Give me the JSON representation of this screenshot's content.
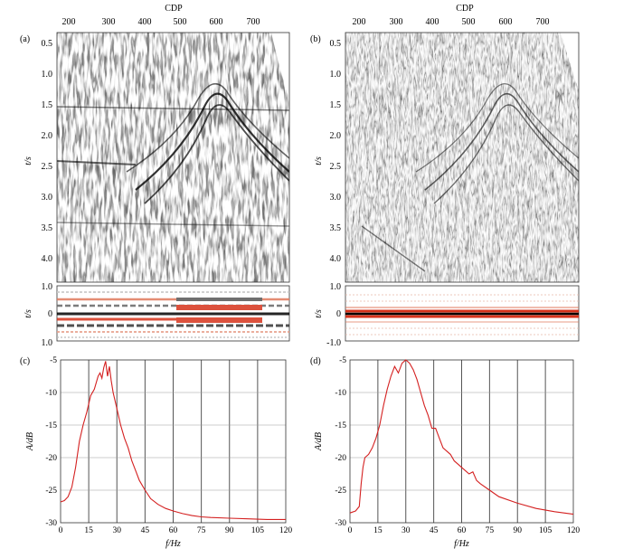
{
  "seismic_panels": [
    {
      "label": "(a)",
      "top_axis_label": "CDP",
      "cdp_ticks": [
        "200",
        "300",
        "400",
        "500",
        "600",
        "700"
      ],
      "time_ticks": [
        "0.5",
        "1.0",
        "1.5",
        "2.0",
        "2.5",
        "3.0",
        "3.5",
        "4.0"
      ],
      "y_label": "t/s",
      "wavelet_ticks": [
        "1.0",
        "0",
        "1.0"
      ],
      "wavelet_y_label": "t/s",
      "wavelet_style": "variable"
    },
    {
      "label": "(b)",
      "top_axis_label": "CDP",
      "cdp_ticks": [
        "200",
        "300",
        "400",
        "500",
        "600",
        "700"
      ],
      "time_ticks": [
        "0.5",
        "1.0",
        "1.5",
        "2.0",
        "2.5",
        "3.0",
        "3.5",
        "4.0"
      ],
      "y_label": "t/s",
      "wavelet_ticks": [
        "1.0",
        "0",
        "-1.0"
      ],
      "wavelet_y_label": "t/s",
      "wavelet_style": "uniform"
    }
  ],
  "chart_data": [
    {
      "type": "line",
      "label": "(c)",
      "xlabel": "f/Hz",
      "ylabel": "A/dB",
      "xlim": [
        0,
        120
      ],
      "ylim": [
        -30,
        -5
      ],
      "xticks": [
        "0",
        "15",
        "30",
        "45",
        "60",
        "75",
        "90",
        "105",
        "120"
      ],
      "yticks": [
        "-5",
        "-10",
        "-15",
        "-20",
        "-25",
        "-30"
      ],
      "grid": true,
      "line_color": "#d42020",
      "x": [
        0,
        2,
        4,
        6,
        8,
        10,
        12,
        14,
        16,
        18,
        20,
        21,
        22,
        23,
        24,
        25,
        26,
        27,
        28,
        30,
        32,
        34,
        36,
        38,
        40,
        42,
        45,
        48,
        52,
        56,
        60,
        65,
        70,
        75,
        80,
        90,
        100,
        110,
        120
      ],
      "y": [
        -26.8,
        -26.6,
        -26,
        -24.5,
        -21.5,
        -17.5,
        -15,
        -13,
        -10.5,
        -9.5,
        -7.5,
        -7,
        -7.8,
        -6.2,
        -5.2,
        -7.5,
        -6,
        -8.2,
        -10,
        -12.5,
        -15,
        -17,
        -18.5,
        -20.5,
        -22,
        -23.5,
        -25,
        -26.3,
        -27.2,
        -27.8,
        -28.2,
        -28.6,
        -28.9,
        -29.1,
        -29.2,
        -29.3,
        -29.4,
        -29.5,
        -29.5
      ]
    },
    {
      "type": "line",
      "label": "(d)",
      "xlabel": "f/Hz",
      "ylabel": "A/dB",
      "xlim": [
        0,
        120
      ],
      "ylim": [
        -30,
        -5
      ],
      "xticks": [
        "0",
        "15",
        "30",
        "45",
        "60",
        "75",
        "90",
        "105",
        "120"
      ],
      "yticks": [
        "-5",
        "-10",
        "-15",
        "-20",
        "-25",
        "-30"
      ],
      "grid": true,
      "line_color": "#d42020",
      "x": [
        0,
        3,
        5,
        6,
        7,
        8,
        10,
        12,
        14,
        16,
        18,
        20,
        22,
        24,
        26,
        28,
        30,
        32,
        34,
        36,
        38,
        40,
        42,
        44,
        46,
        48,
        50,
        52,
        54,
        56,
        58,
        60,
        62,
        64,
        66,
        68,
        70,
        75,
        80,
        90,
        100,
        110,
        120
      ],
      "y": [
        -28.5,
        -28.2,
        -27.5,
        -24,
        -21.5,
        -20,
        -19.5,
        -18.5,
        -17,
        -15,
        -12,
        -9.5,
        -7.5,
        -6,
        -7,
        -5.5,
        -5,
        -5.5,
        -6.5,
        -8,
        -10,
        -12,
        -13.5,
        -15.5,
        -15.5,
        -17,
        -18.5,
        -19,
        -19.5,
        -20.5,
        -21,
        -21.5,
        -22,
        -22.5,
        -22.2,
        -23.5,
        -24,
        -25,
        -26,
        -27,
        -27.8,
        -28.3,
        -28.7
      ]
    }
  ]
}
